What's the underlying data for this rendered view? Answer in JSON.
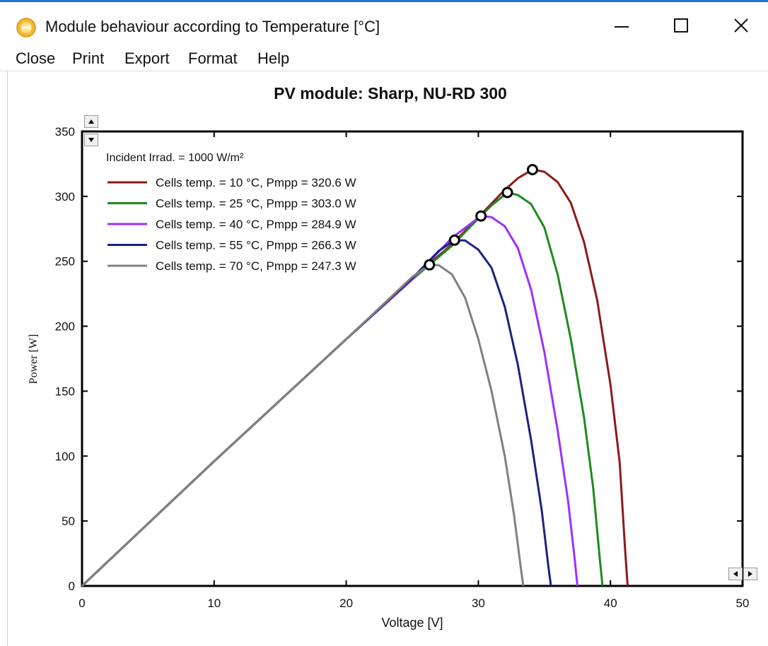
{
  "window": {
    "title": "Module behaviour according to Temperature [°C]",
    "icon": "sun-app-icon",
    "controls": [
      "minimize-icon",
      "maximize-icon",
      "close-icon"
    ]
  },
  "menu": {
    "items": [
      "Close",
      "Print",
      "Export",
      "Format",
      "Help"
    ]
  },
  "chart_data": {
    "type": "line",
    "title": "PV module:  Sharp,  NU-RD 300",
    "xlabel": "Voltage [V]",
    "ylabel": "Power [W]",
    "xlim": [
      0,
      50
    ],
    "ylim": [
      0,
      350
    ],
    "xticks": [
      0,
      10,
      20,
      30,
      40,
      50
    ],
    "yticks": [
      0,
      50,
      100,
      150,
      200,
      250,
      300,
      350
    ],
    "grid": false,
    "legend_position": "top-left",
    "legend_header": "Incident Irrad. = 1000 W/m²",
    "series": [
      {
        "name": "Cells temp. = 10 °C,  Pmpp = 320.6 W",
        "color": "#8b1a1a",
        "mpp": [
          34.1,
          320.6
        ],
        "points": [
          [
            0,
            0
          ],
          [
            5,
            48
          ],
          [
            10,
            96
          ],
          [
            15,
            143
          ],
          [
            20,
            190
          ],
          [
            25,
            237
          ],
          [
            28,
            263
          ],
          [
            30,
            284
          ],
          [
            32,
            305
          ],
          [
            33,
            314
          ],
          [
            34.1,
            320.6
          ],
          [
            35,
            319
          ],
          [
            36,
            311
          ],
          [
            37,
            295
          ],
          [
            38,
            265
          ],
          [
            39,
            220
          ],
          [
            40,
            155
          ],
          [
            40.7,
            95
          ],
          [
            41.1,
            30
          ],
          [
            41.3,
            0
          ]
        ]
      },
      {
        "name": "Cells temp. = 25 °C,  Pmpp = 303.0 W",
        "color": "#1e8a1e",
        "mpp": [
          32.2,
          303.0
        ],
        "points": [
          [
            0,
            0
          ],
          [
            5,
            48
          ],
          [
            10,
            96
          ],
          [
            15,
            143
          ],
          [
            20,
            190
          ],
          [
            25,
            236
          ],
          [
            28,
            262
          ],
          [
            30,
            283
          ],
          [
            31,
            293
          ],
          [
            32.2,
            303
          ],
          [
            33,
            301
          ],
          [
            34,
            294
          ],
          [
            35,
            276
          ],
          [
            36,
            240
          ],
          [
            37,
            190
          ],
          [
            38,
            130
          ],
          [
            38.7,
            75
          ],
          [
            39.2,
            20
          ],
          [
            39.4,
            0
          ]
        ]
      },
      {
        "name": "Cells temp. = 40 °C,  Pmpp = 284.9 W",
        "color": "#9b30ff",
        "mpp": [
          30.2,
          284.9
        ],
        "points": [
          [
            0,
            0
          ],
          [
            5,
            48
          ],
          [
            10,
            96
          ],
          [
            15,
            143
          ],
          [
            20,
            190
          ],
          [
            25,
            236
          ],
          [
            28,
            268
          ],
          [
            30.2,
            284.9
          ],
          [
            31,
            284
          ],
          [
            32,
            277
          ],
          [
            33,
            260
          ],
          [
            34,
            228
          ],
          [
            35,
            180
          ],
          [
            36,
            120
          ],
          [
            36.8,
            65
          ],
          [
            37.3,
            20
          ],
          [
            37.5,
            0
          ]
        ]
      },
      {
        "name": "Cells temp. = 55 °C,  Pmpp = 266.3 W",
        "color": "#1a237e",
        "mpp": [
          28.2,
          266.3
        ],
        "points": [
          [
            0,
            0
          ],
          [
            5,
            48
          ],
          [
            10,
            96
          ],
          [
            15,
            143
          ],
          [
            20,
            190
          ],
          [
            25,
            237
          ],
          [
            27,
            258
          ],
          [
            28.2,
            266.3
          ],
          [
            29,
            266
          ],
          [
            30,
            259
          ],
          [
            31,
            245
          ],
          [
            32,
            215
          ],
          [
            33,
            170
          ],
          [
            34,
            112
          ],
          [
            34.8,
            58
          ],
          [
            35.3,
            15
          ],
          [
            35.5,
            0
          ]
        ]
      },
      {
        "name": "Cells temp. = 70 °C,  Pmpp = 247.3 W",
        "color": "#808080",
        "mpp": [
          26.3,
          247.3
        ],
        "points": [
          [
            0,
            0
          ],
          [
            5,
            48
          ],
          [
            10,
            96
          ],
          [
            15,
            143
          ],
          [
            20,
            190
          ],
          [
            25,
            238
          ],
          [
            26.3,
            247.3
          ],
          [
            27,
            247
          ],
          [
            28,
            240
          ],
          [
            29,
            222
          ],
          [
            30,
            190
          ],
          [
            31,
            150
          ],
          [
            32,
            100
          ],
          [
            32.7,
            55
          ],
          [
            33.2,
            15
          ],
          [
            33.4,
            0
          ]
        ]
      }
    ]
  }
}
